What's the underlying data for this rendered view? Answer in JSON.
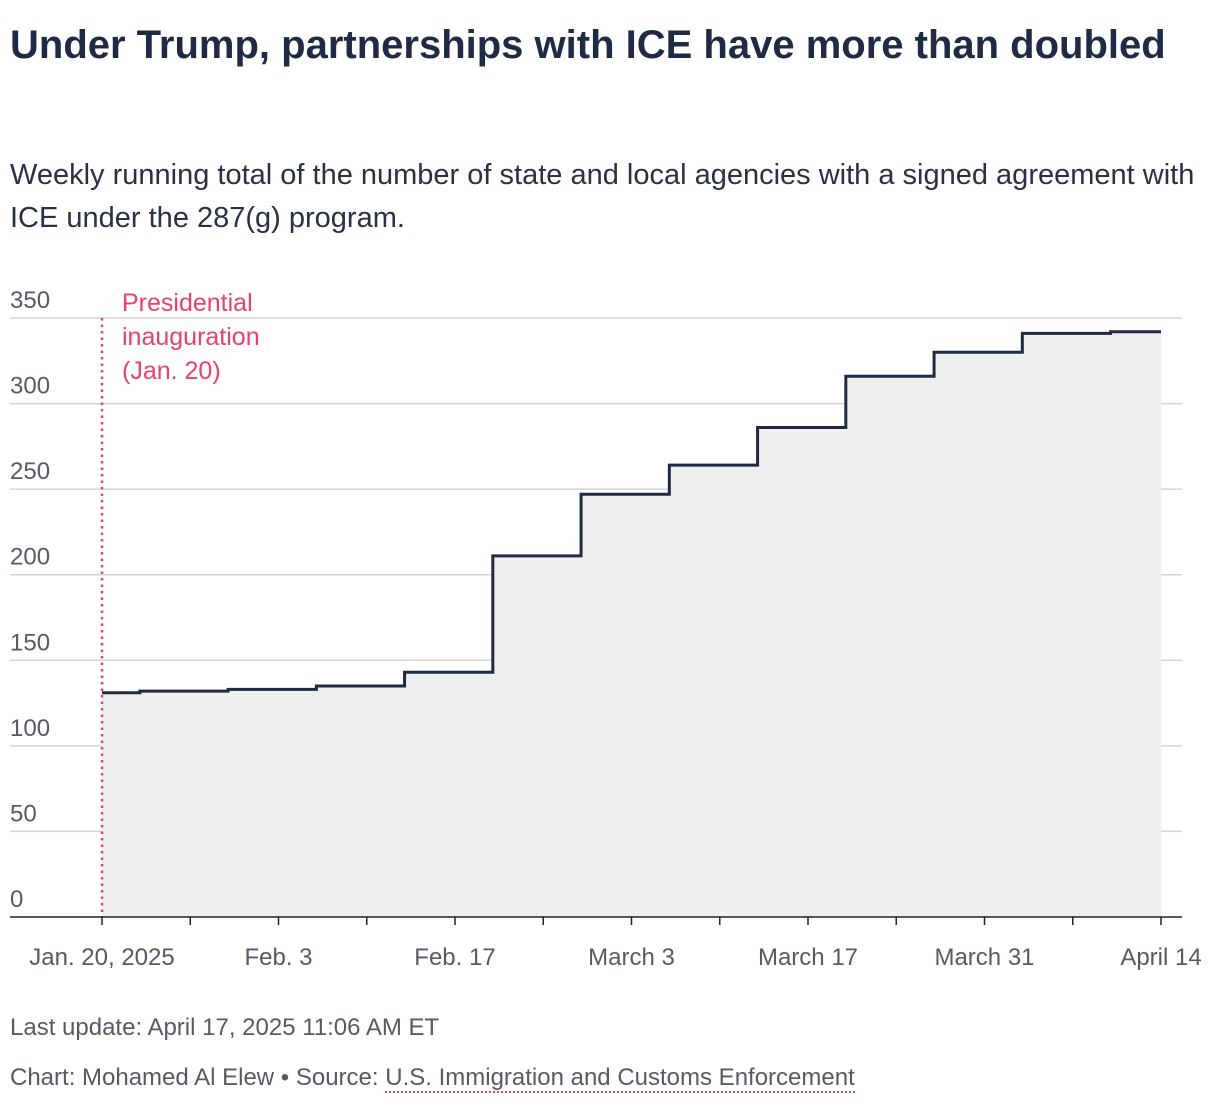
{
  "chart_data": {
    "type": "line",
    "step": "after",
    "area_fill": "#efefef",
    "line_color": "#1f2a44",
    "annotation_color": "#e8416e",
    "title": "Under Trump, partnerships with ICE have more than doubled",
    "subtitle": "Weekly running total of the number of state and local agencies with a signed agreement with ICE under the 287(g) program.",
    "xlabel": "",
    "ylabel": "",
    "ylim": [
      0,
      350
    ],
    "yticks": [
      0,
      50,
      100,
      150,
      200,
      250,
      300,
      350
    ],
    "x_range": [
      "2025-01-20",
      "2025-04-14"
    ],
    "x_tick_dates": [
      "2025-01-20",
      "2025-01-27",
      "2025-02-03",
      "2025-02-10",
      "2025-02-17",
      "2025-02-24",
      "2025-03-03",
      "2025-03-10",
      "2025-03-17",
      "2025-03-24",
      "2025-03-31",
      "2025-04-07",
      "2025-04-14"
    ],
    "x_labels": [
      {
        "date": "2025-01-20",
        "label": "Jan. 20, 2025"
      },
      {
        "date": "2025-02-03",
        "label": "Feb. 3"
      },
      {
        "date": "2025-02-17",
        "label": "Feb. 17"
      },
      {
        "date": "2025-03-03",
        "label": "March 3"
      },
      {
        "date": "2025-03-17",
        "label": "March 17"
      },
      {
        "date": "2025-03-31",
        "label": "March 31"
      },
      {
        "date": "2025-04-14",
        "label": "April 14"
      }
    ],
    "points": [
      {
        "x": "2025-01-20",
        "y": 131
      },
      {
        "x": "2025-01-23",
        "y": 132
      },
      {
        "x": "2025-01-30",
        "y": 133
      },
      {
        "x": "2025-02-06",
        "y": 135
      },
      {
        "x": "2025-02-13",
        "y": 143
      },
      {
        "x": "2025-02-20",
        "y": 211
      },
      {
        "x": "2025-02-27",
        "y": 247
      },
      {
        "x": "2025-03-06",
        "y": 264
      },
      {
        "x": "2025-03-13",
        "y": 286
      },
      {
        "x": "2025-03-20",
        "y": 316
      },
      {
        "x": "2025-03-27",
        "y": 330
      },
      {
        "x": "2025-04-03",
        "y": 341
      },
      {
        "x": "2025-04-10",
        "y": 342
      },
      {
        "x": "2025-04-14",
        "y": 342
      }
    ],
    "annotation": {
      "date": "2025-01-20",
      "lines": [
        "Presidential",
        "inauguration",
        "(Jan. 20)"
      ]
    },
    "grid": true,
    "legend": "none"
  },
  "footer": {
    "last_update": "Last update: April 17, 2025 11:06 AM ET",
    "credit_prefix": "Chart: Mohamed Al Elew • Source: ",
    "source": "U.S. Immigration and Customs Enforcement"
  }
}
